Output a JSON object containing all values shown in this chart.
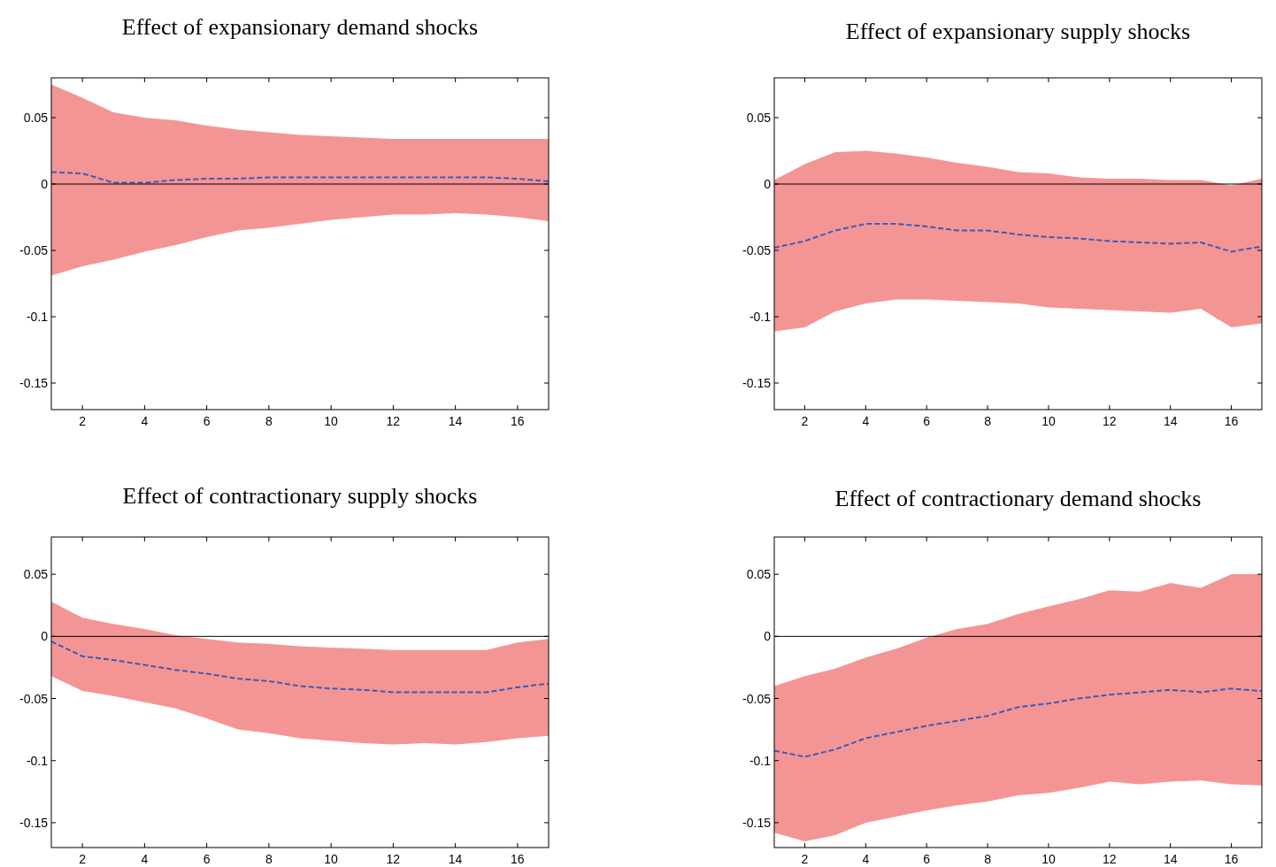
{
  "chart_data": [
    {
      "type": "line",
      "title": "Effect of expansionary demand shocks",
      "x": [
        1,
        2,
        3,
        4,
        5,
        6,
        7,
        8,
        9,
        10,
        11,
        12,
        13,
        14,
        15,
        16,
        17
      ],
      "xlim": [
        1,
        17
      ],
      "xticks": [
        2,
        4,
        6,
        8,
        10,
        12,
        14,
        16
      ],
      "ylim": [
        -0.17,
        0.08
      ],
      "yticks": [
        0.05,
        0,
        -0.05,
        -0.1,
        -0.15
      ],
      "ref_lines": [
        {
          "axis": "y",
          "value": 0,
          "color": "#000000"
        }
      ],
      "series": [
        {
          "color": "#3a5bb8",
          "line_style": "dashed",
          "values": [
            0.009,
            0.008,
            0.001,
            0.001,
            0.003,
            0.004,
            0.004,
            0.005,
            0.005,
            0.005,
            0.005,
            0.005,
            0.005,
            0.005,
            0.005,
            0.004,
            0.002
          ],
          "lower": [
            -0.069,
            -0.062,
            -0.057,
            -0.051,
            -0.046,
            -0.04,
            -0.035,
            -0.033,
            -0.03,
            -0.027,
            -0.025,
            -0.023,
            -0.023,
            -0.022,
            -0.023,
            -0.025,
            -0.028
          ],
          "upper": [
            0.075,
            0.065,
            0.054,
            0.05,
            0.048,
            0.044,
            0.041,
            0.039,
            0.037,
            0.036,
            0.035,
            0.034,
            0.034,
            0.034,
            0.034,
            0.034,
            0.034
          ]
        }
      ]
    },
    {
      "type": "line",
      "title": "Effect of expansionary supply shocks",
      "x": [
        1,
        2,
        3,
        4,
        5,
        6,
        7,
        8,
        9,
        10,
        11,
        12,
        13,
        14,
        15,
        16,
        17
      ],
      "xlim": [
        1,
        17
      ],
      "xticks": [
        2,
        4,
        6,
        8,
        10,
        12,
        14,
        16
      ],
      "ylim": [
        -0.17,
        0.08
      ],
      "yticks": [
        0.05,
        0,
        -0.05,
        -0.1,
        -0.15
      ],
      "ref_lines": [
        {
          "axis": "y",
          "value": 0,
          "color": "#000000"
        }
      ],
      "series": [
        {
          "color": "#3a5bb8",
          "line_style": "dashed",
          "values": [
            -0.048,
            -0.043,
            -0.035,
            -0.03,
            -0.03,
            -0.032,
            -0.035,
            -0.035,
            -0.038,
            -0.04,
            -0.041,
            -0.043,
            -0.044,
            -0.045,
            -0.044,
            -0.051,
            -0.047
          ],
          "lower": [
            -0.111,
            -0.108,
            -0.096,
            -0.09,
            -0.087,
            -0.087,
            -0.088,
            -0.089,
            -0.09,
            -0.093,
            -0.094,
            -0.095,
            -0.096,
            -0.097,
            -0.094,
            -0.108,
            -0.105
          ],
          "upper": [
            0.003,
            0.015,
            0.024,
            0.025,
            0.023,
            0.02,
            0.016,
            0.013,
            0.009,
            0.008,
            0.005,
            0.004,
            0.004,
            0.003,
            0.003,
            -0.001,
            0.004
          ]
        }
      ]
    },
    {
      "type": "line",
      "title": "Effect of contractionary supply shocks",
      "x": [
        1,
        2,
        3,
        4,
        5,
        6,
        7,
        8,
        9,
        10,
        11,
        12,
        13,
        14,
        15,
        16,
        17
      ],
      "xlim": [
        1,
        17
      ],
      "xticks": [
        2,
        4,
        6,
        8,
        10,
        12,
        14,
        16
      ],
      "ylim": [
        -0.17,
        0.08
      ],
      "yticks": [
        0.05,
        0,
        -0.05,
        -0.1,
        -0.15
      ],
      "ref_lines": [
        {
          "axis": "y",
          "value": 0,
          "color": "#000000"
        }
      ],
      "series": [
        {
          "color": "#3a5bb8",
          "line_style": "dashed",
          "values": [
            -0.004,
            -0.016,
            -0.019,
            -0.023,
            -0.027,
            -0.03,
            -0.034,
            -0.036,
            -0.04,
            -0.042,
            -0.043,
            -0.045,
            -0.045,
            -0.045,
            -0.045,
            -0.041,
            -0.038
          ],
          "lower": [
            -0.032,
            -0.044,
            -0.048,
            -0.053,
            -0.058,
            -0.066,
            -0.075,
            -0.078,
            -0.082,
            -0.084,
            -0.086,
            -0.087,
            -0.086,
            -0.087,
            -0.085,
            -0.082,
            -0.08
          ],
          "upper": [
            0.028,
            0.015,
            0.01,
            0.006,
            0.001,
            -0.002,
            -0.005,
            -0.006,
            -0.008,
            -0.009,
            -0.01,
            -0.011,
            -0.011,
            -0.011,
            -0.011,
            -0.005,
            -0.002
          ]
        }
      ]
    },
    {
      "type": "line",
      "title": "Effect of contractionary demand shocks",
      "x": [
        1,
        2,
        3,
        4,
        5,
        6,
        7,
        8,
        9,
        10,
        11,
        12,
        13,
        14,
        15,
        16,
        17
      ],
      "xlim": [
        1,
        17
      ],
      "xticks": [
        2,
        4,
        6,
        8,
        10,
        12,
        14,
        16
      ],
      "ylim": [
        -0.17,
        0.08
      ],
      "yticks": [
        0.05,
        0,
        -0.05,
        -0.1,
        -0.15
      ],
      "ref_lines": [
        {
          "axis": "y",
          "value": 0,
          "color": "#000000"
        }
      ],
      "series": [
        {
          "color": "#3a5bb8",
          "line_style": "dashed",
          "values": [
            -0.092,
            -0.097,
            -0.091,
            -0.082,
            -0.077,
            -0.072,
            -0.068,
            -0.064,
            -0.057,
            -0.054,
            -0.05,
            -0.047,
            -0.045,
            -0.043,
            -0.045,
            -0.042,
            -0.044
          ],
          "lower": [
            -0.158,
            -0.165,
            -0.16,
            -0.15,
            -0.145,
            -0.14,
            -0.136,
            -0.133,
            -0.128,
            -0.126,
            -0.122,
            -0.117,
            -0.119,
            -0.117,
            -0.116,
            -0.119,
            -0.12
          ],
          "upper": [
            -0.04,
            -0.032,
            -0.026,
            -0.017,
            -0.01,
            -0.001,
            0.006,
            0.01,
            0.018,
            0.024,
            0.03,
            0.037,
            0.036,
            0.043,
            0.039,
            0.05,
            0.05
          ]
        }
      ]
    }
  ]
}
